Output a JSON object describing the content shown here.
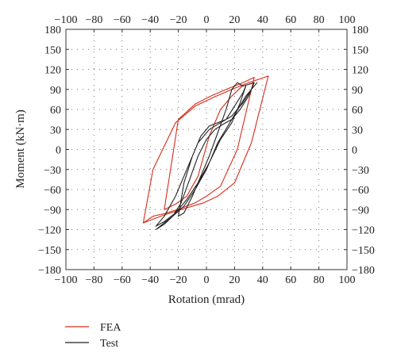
{
  "chart_data": {
    "type": "line",
    "xlabel": "Rotation (mrad)",
    "ylabel": "Moment (kN·m)",
    "xlim": [
      -100,
      100
    ],
    "ylim": [
      -180,
      180
    ],
    "x_ticks": [
      -100,
      -80,
      -60,
      -40,
      -20,
      0,
      20,
      40,
      60,
      80,
      100
    ],
    "y_ticks": [
      -180,
      -150,
      -120,
      -90,
      -60,
      -30,
      0,
      30,
      60,
      90,
      120,
      150,
      180
    ],
    "x_tick_labels": [
      "−100",
      "−80",
      "−60",
      "−40",
      "−20",
      "0",
      "20",
      "40",
      "60",
      "80",
      "100"
    ],
    "y_tick_labels": [
      "−180",
      "−150",
      "−120",
      "−90",
      "−60",
      "−30",
      "0",
      "30",
      "60",
      "90",
      "120",
      "150",
      "180"
    ],
    "grid": "dotted",
    "legend_position": "bottom-left",
    "series": [
      {
        "name": "FEA",
        "color": "#d62d1a",
        "x": [
          -45,
          -30,
          -15,
          -2,
          8,
          20,
          32,
          44,
          30,
          18,
          5,
          -8,
          -22,
          -38,
          -45,
          -38,
          -28,
          -18,
          -8,
          0,
          10,
          22,
          34,
          26,
          14,
          3,
          -8,
          -20,
          -30,
          -22,
          -14,
          -6,
          2,
          10,
          18,
          26
        ],
        "y": [
          -110,
          -98,
          -88,
          -80,
          -70,
          -50,
          10,
          110,
          100,
          90,
          78,
          65,
          40,
          -30,
          -110,
          -100,
          -95,
          -88,
          -80,
          -70,
          -55,
          0,
          108,
          100,
          90,
          80,
          68,
          45,
          -90,
          -82,
          -70,
          -40,
          20,
          60,
          80,
          96
        ]
      },
      {
        "name": "Test",
        "color": "#222222",
        "x": [
          -36,
          -30,
          -24,
          -16,
          -8,
          0,
          8,
          18,
          28,
          36,
          32,
          26,
          18,
          10,
          2,
          -6,
          -14,
          -22,
          -30,
          -36,
          -30,
          -22,
          -14,
          -6,
          2,
          10,
          18,
          24,
          28,
          26,
          20,
          14,
          8,
          2,
          -4,
          -10,
          -16,
          -20,
          -16,
          -10,
          -4,
          2,
          8,
          14,
          18,
          22,
          26,
          34,
          30,
          24,
          18,
          12,
          6,
          0,
          -6,
          -12,
          -18,
          -24,
          -30,
          -36
        ],
        "y": [
          -120,
          -110,
          -100,
          -85,
          -60,
          -30,
          10,
          45,
          80,
          100,
          90,
          70,
          50,
          40,
          30,
          10,
          -30,
          -70,
          -100,
          -115,
          -108,
          -95,
          -75,
          -50,
          -20,
          15,
          40,
          70,
          95,
          85,
          65,
          45,
          40,
          35,
          20,
          -10,
          -50,
          -100,
          -95,
          -70,
          -40,
          -10,
          25,
          60,
          90,
          100,
          95,
          100,
          80,
          60,
          45,
          38,
          30,
          15,
          -10,
          -45,
          -80,
          -100,
          -112,
          -120
        ]
      }
    ]
  }
}
